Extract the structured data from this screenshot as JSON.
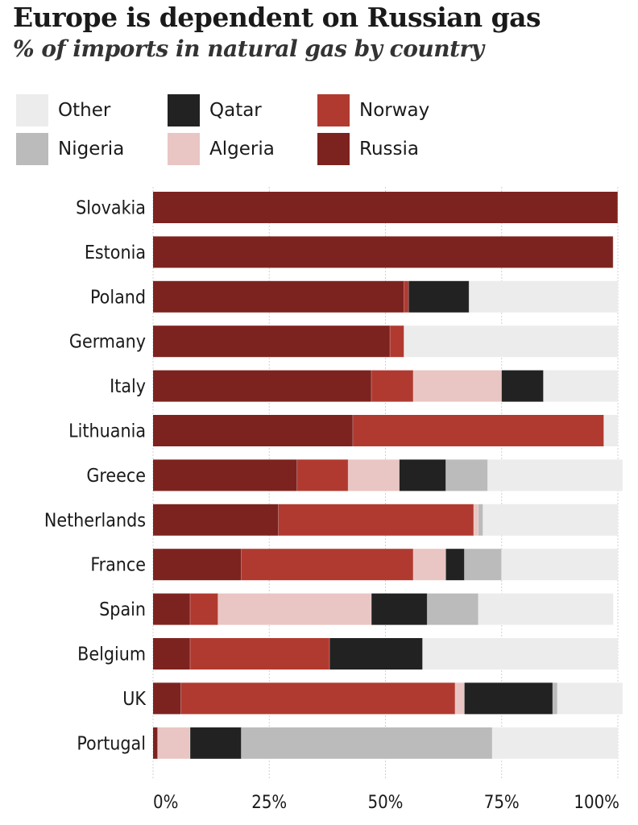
{
  "header": {
    "title": "Europe is dependent on Russian gas",
    "subtitle": "% of imports in natural gas by country"
  },
  "colors": {
    "Other": "#ececec",
    "Nigeria": "#bbbbbb",
    "Qatar": "#222222",
    "Algeria": "#e9c6c3",
    "Norway": "#b13a30",
    "Russia": "#7d231f"
  },
  "legend": [
    {
      "name": "Other"
    },
    {
      "name": "Nigeria"
    },
    {
      "name": "Qatar"
    },
    {
      "name": "Algeria"
    },
    {
      "name": "Norway"
    },
    {
      "name": "Russia"
    }
  ],
  "chart_data": {
    "type": "bar",
    "orientation": "horizontal",
    "stacked": true,
    "title": "Europe is dependent on Russian gas",
    "subtitle": "% of imports in natural gas by country",
    "xlim": [
      0,
      100
    ],
    "x_ticks": [
      "0%",
      "25%",
      "50%",
      "75%",
      "100%"
    ],
    "grid": true,
    "legend_position": "top",
    "categories": [
      "Slovakia",
      "Estonia",
      "Poland",
      "Germany",
      "Italy",
      "Lithuania",
      "Greece",
      "Netherlands",
      "France",
      "Spain",
      "Belgium",
      "UK",
      "Portugal"
    ],
    "series": [
      {
        "name": "Russia",
        "values": [
          100,
          99,
          54,
          51,
          47,
          43,
          31,
          27,
          19,
          8,
          8,
          6,
          1
        ]
      },
      {
        "name": "Norway",
        "values": [
          0,
          0,
          1,
          3,
          9,
          54,
          11,
          42,
          37,
          6,
          30,
          59,
          0
        ]
      },
      {
        "name": "Algeria",
        "values": [
          0,
          0,
          0,
          0,
          19,
          0,
          11,
          1,
          7,
          33,
          0,
          2,
          7
        ]
      },
      {
        "name": "Qatar",
        "values": [
          0,
          0,
          13,
          0,
          9,
          0,
          10,
          0,
          4,
          12,
          20,
          19,
          11
        ]
      },
      {
        "name": "Nigeria",
        "values": [
          0,
          0,
          0,
          0,
          0,
          0,
          9,
          1,
          8,
          11,
          0,
          1,
          54
        ]
      },
      {
        "name": "Other",
        "values": [
          0,
          0,
          32,
          46,
          16,
          3,
          29,
          29,
          25,
          29,
          42,
          14,
          27
        ]
      }
    ]
  }
}
